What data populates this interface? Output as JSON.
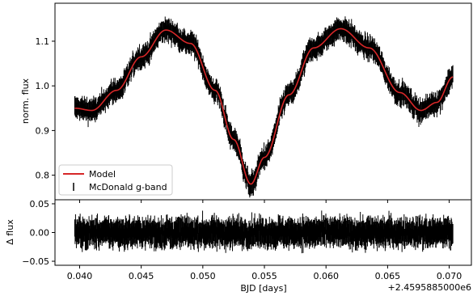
{
  "chart_data": [
    {
      "panel": "main",
      "type": "scatter",
      "xlabel": "",
      "ylabel": "norm. flux",
      "xlim": [
        0.038,
        0.0718
      ],
      "ylim": [
        0.745,
        1.185
      ],
      "xticks": [
        0.04,
        0.045,
        0.05,
        0.055,
        0.06,
        0.065,
        0.07
      ],
      "yticks": [
        0.8,
        0.9,
        1.0,
        1.1
      ],
      "ytick_labels": [
        "0.8",
        "0.9",
        "1.0",
        "1.1"
      ],
      "grid": false,
      "legend_position": "lower-left",
      "series": [
        {
          "name": "McDonald g-band",
          "kind": "errorbar",
          "color": "#000000",
          "x_range": [
            0.0396,
            0.0703
          ],
          "n_points": 900,
          "yerr": 0.018
        },
        {
          "name": "Model",
          "kind": "line",
          "color": "#d62728",
          "x": [
            0.0396,
            0.041,
            0.043,
            0.045,
            0.047,
            0.049,
            0.051,
            0.0525,
            0.0539,
            0.055,
            0.057,
            0.059,
            0.0612,
            0.0635,
            0.066,
            0.0677,
            0.069,
            0.0703
          ],
          "y": [
            0.95,
            0.945,
            0.99,
            1.065,
            1.125,
            1.095,
            0.99,
            0.88,
            0.78,
            0.84,
            0.98,
            1.085,
            1.128,
            1.085,
            0.985,
            0.945,
            0.963,
            1.02
          ]
        }
      ]
    },
    {
      "panel": "residuals",
      "type": "scatter",
      "xlabel": "BJD [days]",
      "ylabel": "Δ flux",
      "xlim": [
        0.038,
        0.0718
      ],
      "ylim": [
        -0.057,
        0.057
      ],
      "xticks": [
        0.04,
        0.045,
        0.05,
        0.055,
        0.06,
        0.065,
        0.07
      ],
      "xtick_labels": [
        "0.040",
        "0.045",
        "0.050",
        "0.055",
        "0.060",
        "0.065",
        "0.070"
      ],
      "yticks": [
        -0.05,
        0.0,
        0.05
      ],
      "ytick_labels": [
        "−0.05",
        "0.00",
        "0.05"
      ],
      "x_offset_label": "+2.4595885000e6",
      "grid": false,
      "series": [
        {
          "name": "residuals",
          "kind": "errorbar",
          "color": "#000000",
          "x_range": [
            0.0396,
            0.0703
          ],
          "n_points": 900,
          "yerr": 0.018
        }
      ]
    }
  ],
  "legend": {
    "model_label": "Model",
    "data_label": "McDonald g-band"
  }
}
